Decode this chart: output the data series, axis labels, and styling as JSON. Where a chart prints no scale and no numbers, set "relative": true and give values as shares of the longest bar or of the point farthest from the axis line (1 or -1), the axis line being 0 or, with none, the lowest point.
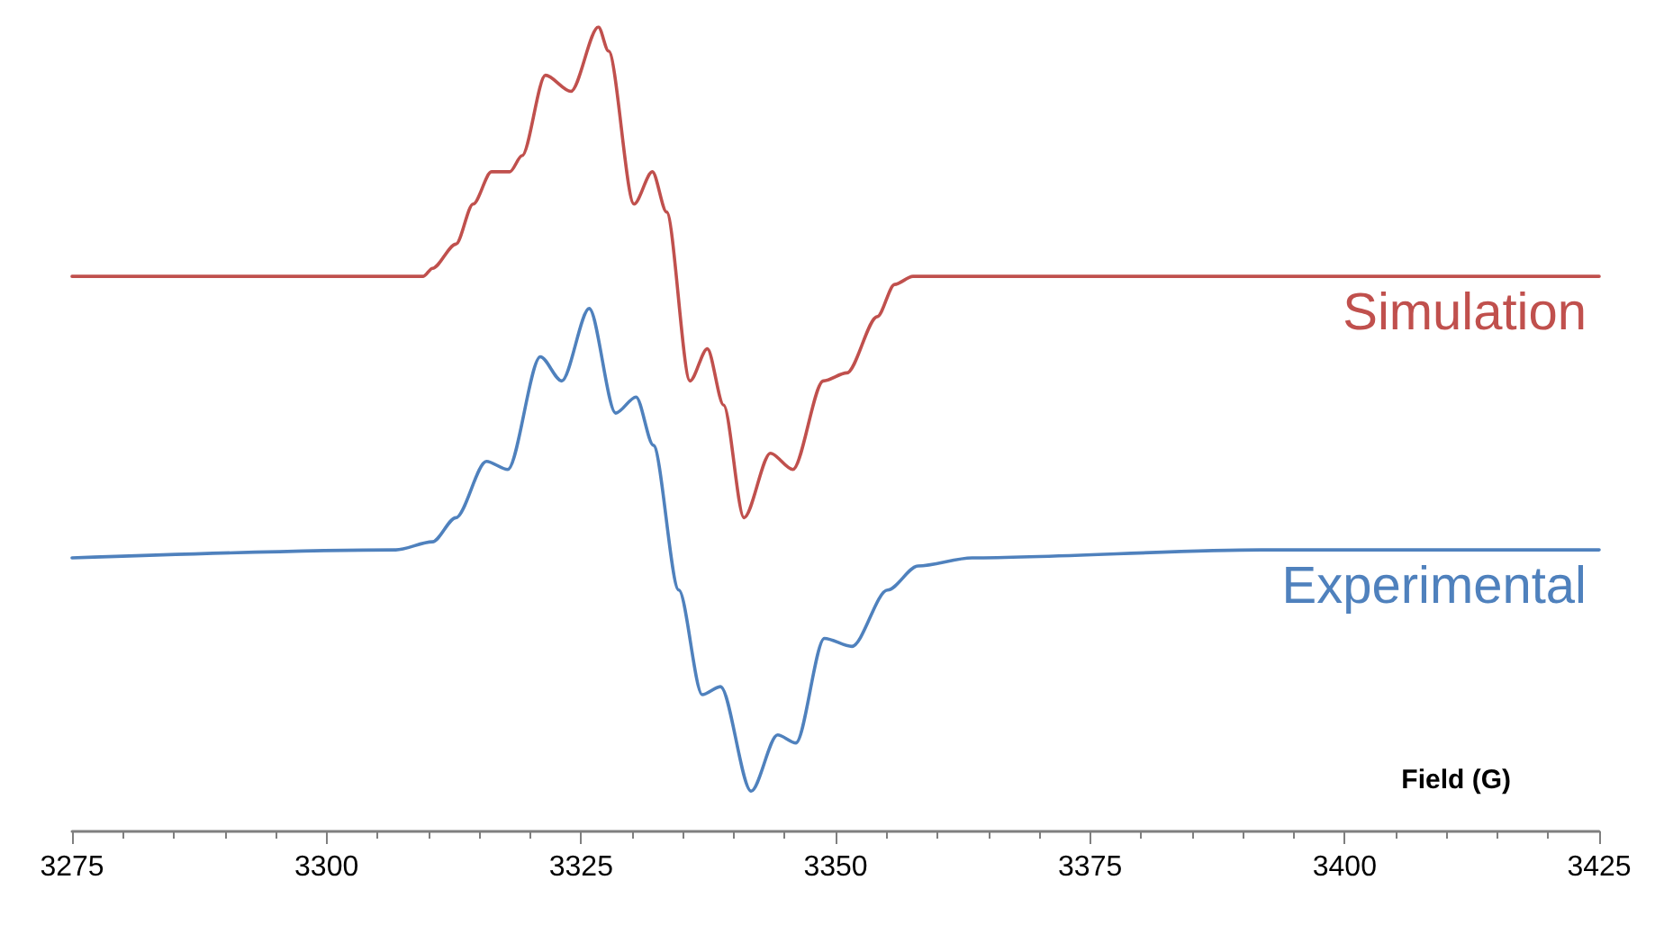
{
  "chart_data": {
    "type": "line",
    "relative": true,
    "xlabel": "Field (G)",
    "xlim": [
      3275,
      3425
    ],
    "xticks": [
      3275,
      3300,
      3325,
      3350,
      3375,
      3400,
      3425
    ],
    "grid": false,
    "legend": false,
    "marker": "none",
    "line_style": "solid",
    "series": [
      {
        "name": "Simulation",
        "color": "#c0504d",
        "x": [
          3275,
          3309.5,
          3310.4,
          3312.7,
          3314.4,
          3316.2,
          3318.0,
          3319.2,
          3321.5,
          3324.0,
          3326.7,
          3327.7,
          3330.2,
          3332.0,
          3333.4,
          3335.7,
          3337.4,
          3339.0,
          3341.0,
          3343.6,
          3345.8,
          3348.8,
          3351.1,
          3354.1,
          3355.8,
          3357.6,
          3425
        ],
        "values": [
          0.69,
          0.69,
          0.7,
          0.73,
          0.78,
          0.82,
          0.82,
          0.84,
          0.94,
          0.92,
          1,
          0.97,
          0.78,
          0.82,
          0.77,
          0.56,
          0.6,
          0.53,
          0.39,
          0.47,
          0.45,
          0.56,
          0.57,
          0.64,
          0.68,
          0.69,
          0.69
        ]
      },
      {
        "name": "Experimental",
        "color": "#4f81bd",
        "x": [
          3275,
          3306.8,
          3310.4,
          3312.7,
          3315.7,
          3317.8,
          3321.0,
          3323.1,
          3325.8,
          3328.4,
          3330.4,
          3332.1,
          3334.6,
          3336.9,
          3338.7,
          3341.7,
          3344.3,
          3346.1,
          3348.9,
          3351.6,
          3355.1,
          3358.1,
          3363.4,
          3391.8,
          3425
        ],
        "values": [
          0.34,
          0.35,
          0.36,
          0.39,
          0.46,
          0.45,
          0.59,
          0.56,
          0.65,
          0.52,
          0.54,
          0.48,
          0.3,
          0.17,
          0.18,
          0.05,
          0.12,
          0.11,
          0.24,
          0.23,
          0.3,
          0.33,
          0.34,
          0.35,
          0.35
        ]
      }
    ]
  }
}
